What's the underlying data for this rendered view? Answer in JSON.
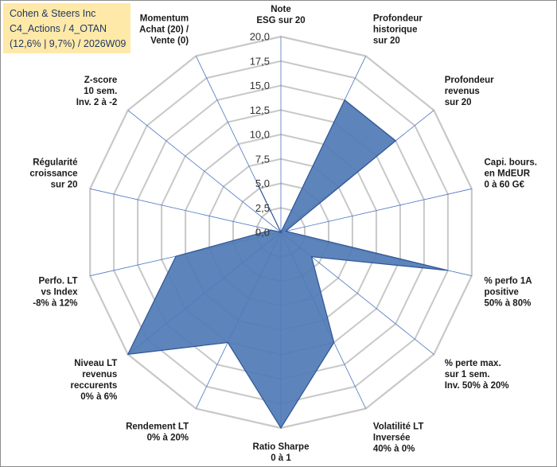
{
  "chart_data": {
    "type": "radar",
    "title_lines": [
      "Cohen & Steers Inc",
      "C4_Actions / 4_OTAN",
      "(12,6% | 9,7%) / 2026W09"
    ],
    "rlim": [
      0,
      20
    ],
    "ticks": [
      "0,0",
      "2,5",
      "5,0",
      "7,5",
      "10,0",
      "12,5",
      "15,0",
      "17,5",
      "20,0"
    ],
    "tick_values": [
      0,
      2.5,
      5,
      7.5,
      10,
      12.5,
      15,
      17.5,
      20
    ],
    "grid": true,
    "axes": [
      {
        "label": [
          "Note",
          "ESG sur 20"
        ],
        "value": 0
      },
      {
        "label": [
          "Profondeur",
          "historique",
          "sur 20"
        ],
        "value": 15
      },
      {
        "label": [
          "Profondeur",
          "revenus",
          "sur 20"
        ],
        "value": 15
      },
      {
        "label": [
          "Capi. bours.",
          "en MdEUR",
          "0 à 60 G€"
        ],
        "value": 0.5
      },
      {
        "label": [
          "% perfo 1A",
          "positive",
          "50% à 80%"
        ],
        "value": 17.5
      },
      {
        "label": [
          "% perte max.",
          "sur 1 sem.",
          "Inv. 50% à 20%"
        ],
        "value": 4
      },
      {
        "label": [
          "Volatilité LT",
          "Inversée",
          "40% à 0%"
        ],
        "value": 12.5
      },
      {
        "label": [
          "Ratio Sharpe",
          "0 à 1"
        ],
        "value": 20
      },
      {
        "label": [
          "Rendement LT",
          "0% à 20%"
        ],
        "value": 12.5
      },
      {
        "label": [
          "Niveau LT",
          "revenus",
          "reccurents",
          "0% à 6%"
        ],
        "value": 20
      },
      {
        "label": [
          "Perfo. LT",
          "vs Index",
          "-8% à 12%"
        ],
        "value": 11
      },
      {
        "label": [
          "Régularité",
          "croissance",
          "sur 20"
        ],
        "value": 1
      },
      {
        "label": [
          "Z-score",
          "10 sem.",
          "Inv. 2 à -2"
        ],
        "value": 0
      },
      {
        "label": [
          "Momentum",
          "Achat (20) /",
          "Vente (0)"
        ],
        "value": 5.5
      }
    ],
    "colors": {
      "fill": "#4f7bb5",
      "stroke": "#2f5597",
      "grid": "#c8c8c8",
      "spoke": "#4a74c0"
    }
  }
}
